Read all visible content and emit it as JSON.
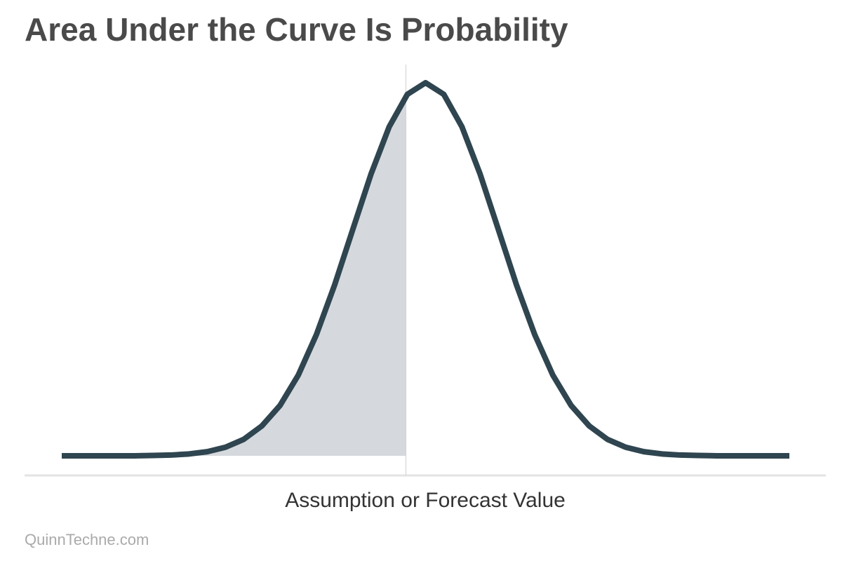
{
  "chart_data": {
    "type": "line",
    "title": "Area Under the Curve Is Probability",
    "x_label": "Assumption or Forecast Value",
    "source": "QuinnTechne.com",
    "x": [
      -5,
      -4.75,
      -4.5,
      -4.25,
      -4,
      -3.75,
      -3.5,
      -3.25,
      -3,
      -2.75,
      -2.5,
      -2.25,
      -2,
      -1.75,
      -1.5,
      -1.25,
      -1,
      -0.75,
      -0.5,
      -0.25,
      0,
      0.25,
      0.5,
      0.75,
      1,
      1.25,
      1.5,
      1.75,
      2,
      2.25,
      2.5,
      2.75,
      3,
      3.25,
      3.5,
      3.75,
      4,
      4.25,
      4.5,
      4.75,
      5
    ],
    "series": [
      {
        "color": "#2f4550",
        "values": [
          0,
          0,
          0,
          0,
          0,
          0.001,
          0.002,
          0.005,
          0.011,
          0.023,
          0.044,
          0.08,
          0.135,
          0.216,
          0.325,
          0.458,
          0.607,
          0.755,
          0.882,
          0.969,
          1,
          0.969,
          0.882,
          0.755,
          0.607,
          0.458,
          0.325,
          0.216,
          0.135,
          0.08,
          0.044,
          0.023,
          0.011,
          0.005,
          0.002,
          0.001,
          0,
          0,
          0,
          0,
          0
        ]
      }
    ],
    "threshold": -0.27,
    "shade_color": "#d5d9dd",
    "xlim": [
      -5,
      5
    ],
    "ylim": [
      0,
      1
    ]
  }
}
